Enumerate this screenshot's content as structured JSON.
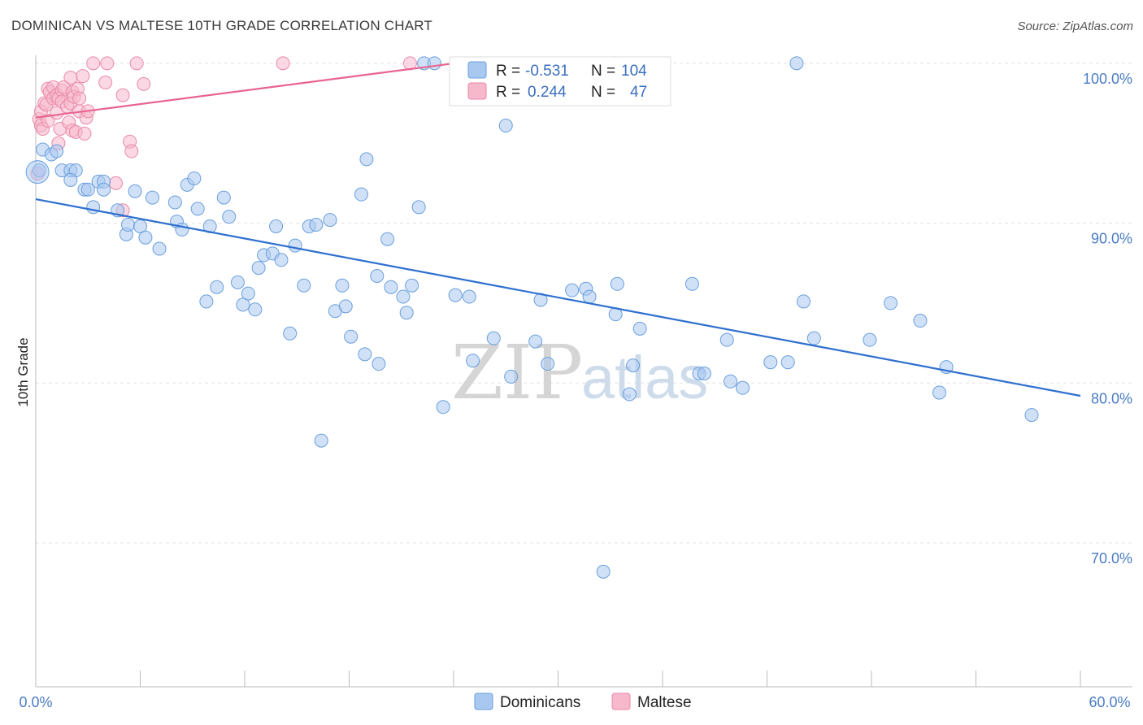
{
  "title": "DOMINICAN VS MALTESE 10TH GRADE CORRELATION CHART",
  "source": "Source: ZipAtlas.com",
  "watermark": {
    "zip": "ZIP",
    "atlas": "atlas"
  },
  "chart_data": {
    "type": "scatter",
    "ylabel": "10th Grade",
    "xlim": [
      0,
      60
    ],
    "ylim": [
      61,
      100.5
    ],
    "x_tick_labels": [
      "0.0%",
      "60.0%"
    ],
    "y_ticks": [
      {
        "value": 100,
        "label": "100.0%"
      },
      {
        "value": 90,
        "label": "90.0%"
      },
      {
        "value": 80,
        "label": "80.0%"
      },
      {
        "value": 70,
        "label": "70.0%"
      }
    ],
    "grid": "horizontal dashed",
    "legend_top": {
      "rows": [
        {
          "r_label": "R =",
          "r_value": "-0.531",
          "n_label": "N =",
          "n_value": "104",
          "color": "#a9c8f0"
        },
        {
          "r_label": "R =",
          "r_value": "0.244",
          "n_label": "N =",
          "n_value": "47",
          "color": "#f7b8cc"
        }
      ]
    },
    "legend_bottom": [
      "Dominicans",
      "Maltese"
    ],
    "colors": {
      "blue_fill": "#a9c8f0",
      "blue_stroke": "#6a9fdc",
      "blue_line": "#2e6fd0",
      "pink_fill": "#f7b8cc",
      "pink_stroke": "#e98aa8",
      "pink_line": "#e8648f"
    },
    "series": [
      {
        "name": "Dominicans",
        "trend": {
          "x": [
            0,
            60
          ],
          "y": [
            91.5,
            79.2
          ]
        },
        "points": [
          [
            0.4,
            94.6
          ],
          [
            0.9,
            94.3
          ],
          [
            1.2,
            94.5
          ],
          [
            1.5,
            93.3
          ],
          [
            2.0,
            93.3
          ],
          [
            2.3,
            93.3
          ],
          [
            2.8,
            92.1
          ],
          [
            3.3,
            91.0
          ],
          [
            3.6,
            92.6
          ],
          [
            3.9,
            92.6
          ],
          [
            3.0,
            92.1
          ],
          [
            4.7,
            90.8
          ],
          [
            5.2,
            89.3
          ],
          [
            5.3,
            89.9
          ],
          [
            5.7,
            92.0
          ],
          [
            6.0,
            89.8
          ],
          [
            6.3,
            89.1
          ],
          [
            6.7,
            91.6
          ],
          [
            7.1,
            88.4
          ],
          [
            8.0,
            91.3
          ],
          [
            8.1,
            90.1
          ],
          [
            8.4,
            89.6
          ],
          [
            8.7,
            92.4
          ],
          [
            9.1,
            92.8
          ],
          [
            9.3,
            90.9
          ],
          [
            10.0,
            89.8
          ],
          [
            10.8,
            91.6
          ],
          [
            11.1,
            90.4
          ],
          [
            9.8,
            85.1
          ],
          [
            10.4,
            86.0
          ],
          [
            11.6,
            86.3
          ],
          [
            11.9,
            84.9
          ],
          [
            12.2,
            85.6
          ],
          [
            12.6,
            84.6
          ],
          [
            12.8,
            87.2
          ],
          [
            13.1,
            88.0
          ],
          [
            13.6,
            88.1
          ],
          [
            13.8,
            89.8
          ],
          [
            14.1,
            87.7
          ],
          [
            14.6,
            83.1
          ],
          [
            14.9,
            88.6
          ],
          [
            15.4,
            86.1
          ],
          [
            15.7,
            89.8
          ],
          [
            16.1,
            89.9
          ],
          [
            16.9,
            90.2
          ],
          [
            17.2,
            84.5
          ],
          [
            17.6,
            86.1
          ],
          [
            17.8,
            84.8
          ],
          [
            18.1,
            82.9
          ],
          [
            18.7,
            91.8
          ],
          [
            19.0,
            94.0
          ],
          [
            18.9,
            81.8
          ],
          [
            19.6,
            86.7
          ],
          [
            19.7,
            81.2
          ],
          [
            20.4,
            86.0
          ],
          [
            21.1,
            85.4
          ],
          [
            21.3,
            84.4
          ],
          [
            21.6,
            86.1
          ],
          [
            22.0,
            91.0
          ],
          [
            20.2,
            89.0
          ],
          [
            23.4,
            78.5
          ],
          [
            24.1,
            85.5
          ],
          [
            24.9,
            85.4
          ],
          [
            25.1,
            81.4
          ],
          [
            26.3,
            82.8
          ],
          [
            27.0,
            96.1
          ],
          [
            27.3,
            80.4
          ],
          [
            28.7,
            82.6
          ],
          [
            29.0,
            85.2
          ],
          [
            29.4,
            81.2
          ],
          [
            30.8,
            85.8
          ],
          [
            31.6,
            85.9
          ],
          [
            31.8,
            85.4
          ],
          [
            32.6,
            68.2
          ],
          [
            33.3,
            84.3
          ],
          [
            33.4,
            86.2
          ],
          [
            34.1,
            79.3
          ],
          [
            34.3,
            81.1
          ],
          [
            34.7,
            83.4
          ],
          [
            37.7,
            86.2
          ],
          [
            38.1,
            80.6
          ],
          [
            38.4,
            80.6
          ],
          [
            39.7,
            82.7
          ],
          [
            39.9,
            80.1
          ],
          [
            40.6,
            79.7
          ],
          [
            42.2,
            81.3
          ],
          [
            43.2,
            81.3
          ],
          [
            43.7,
            100.0
          ],
          [
            44.1,
            85.1
          ],
          [
            44.7,
            82.8
          ],
          [
            47.9,
            82.7
          ],
          [
            49.1,
            85.0
          ],
          [
            50.8,
            83.9
          ],
          [
            51.9,
            79.4
          ],
          [
            52.3,
            81.0
          ],
          [
            57.2,
            78.0
          ],
          [
            16.4,
            76.4
          ],
          [
            22.3,
            100.0
          ],
          [
            22.9,
            100.0
          ],
          [
            25.5,
            100.0
          ],
          [
            33.3,
            100.0
          ],
          [
            0.2,
            93.3
          ],
          [
            2.0,
            92.7
          ],
          [
            3.9,
            92.1
          ]
        ]
      },
      {
        "name": "Maltese",
        "trend": {
          "x": [
            0,
            25.5
          ],
          "y": [
            96.6,
            100.2
          ]
        },
        "points": [
          [
            0.2,
            96.5
          ],
          [
            0.3,
            97.0
          ],
          [
            0.3,
            96.1
          ],
          [
            0.4,
            95.9
          ],
          [
            0.5,
            97.5
          ],
          [
            0.6,
            97.4
          ],
          [
            0.7,
            96.4
          ],
          [
            0.7,
            98.4
          ],
          [
            0.8,
            98.2
          ],
          [
            1.0,
            98.5
          ],
          [
            1.0,
            97.8
          ],
          [
            1.2,
            96.9
          ],
          [
            1.2,
            98.0
          ],
          [
            1.3,
            97.8
          ],
          [
            1.4,
            95.9
          ],
          [
            1.5,
            98.3
          ],
          [
            1.5,
            97.6
          ],
          [
            1.6,
            98.5
          ],
          [
            1.8,
            97.3
          ],
          [
            1.9,
            96.3
          ],
          [
            2.0,
            97.5
          ],
          [
            2.1,
            95.8
          ],
          [
            2.1,
            98.2
          ],
          [
            2.2,
            97.9
          ],
          [
            2.3,
            95.7
          ],
          [
            2.4,
            98.4
          ],
          [
            2.5,
            97.8
          ],
          [
            2.5,
            97.0
          ],
          [
            2.7,
            99.2
          ],
          [
            2.8,
            95.6
          ],
          [
            2.9,
            96.6
          ],
          [
            3.0,
            97.0
          ],
          [
            3.3,
            100.0
          ],
          [
            4.0,
            98.8
          ],
          [
            4.1,
            100.0
          ],
          [
            5.0,
            98.0
          ],
          [
            5.4,
            95.1
          ],
          [
            5.5,
            94.5
          ],
          [
            5.8,
            100.0
          ],
          [
            6.2,
            98.7
          ],
          [
            14.2,
            100.0
          ],
          [
            21.5,
            100.0
          ],
          [
            1.3,
            95.0
          ],
          [
            2.0,
            99.1
          ],
          [
            4.6,
            92.5
          ],
          [
            5.0,
            90.8
          ],
          [
            0.1,
            93.1
          ]
        ]
      }
    ]
  }
}
